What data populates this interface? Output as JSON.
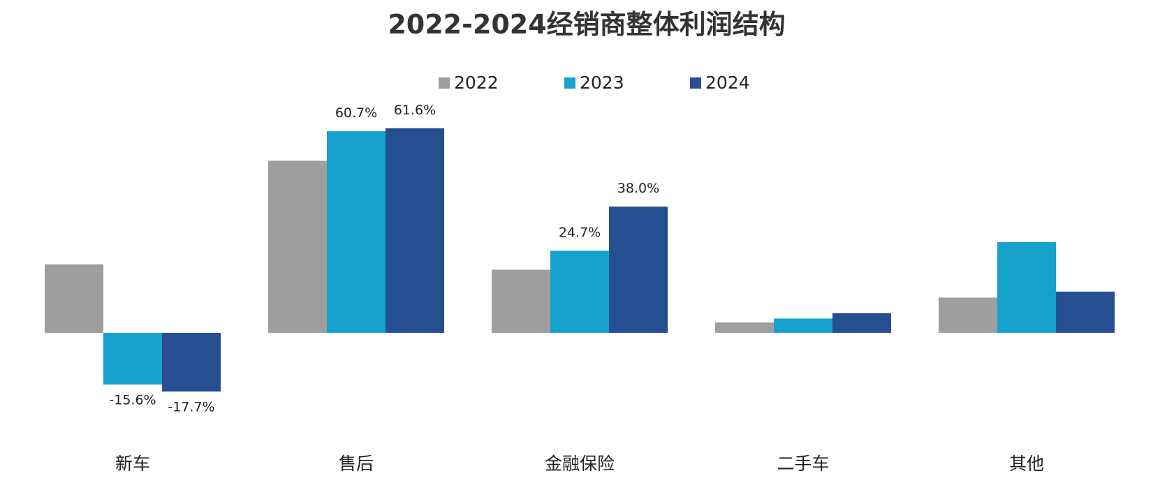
{
  "chart_data": {
    "type": "bar",
    "title": "2022-2024经销商整体利润结构",
    "categories": [
      "新车",
      "售后",
      "金融保险",
      "二手车",
      "其他"
    ],
    "series": [
      {
        "name": "2022",
        "color": "#9e9e9e",
        "values": [
          20.6,
          51.8,
          19.0,
          3.1,
          10.6
        ]
      },
      {
        "name": "2023",
        "color": "#17a2cb",
        "values": [
          -15.6,
          60.7,
          24.7,
          4.3,
          27.3
        ]
      },
      {
        "name": "2024",
        "color": "#264f91",
        "values": [
          -17.7,
          61.6,
          38.0,
          5.9,
          12.4
        ]
      }
    ],
    "data_labels": [
      {
        "category": 0,
        "series": 1,
        "text": "-15.6%"
      },
      {
        "category": 0,
        "series": 2,
        "text": "-17.7%"
      },
      {
        "category": 1,
        "series": 1,
        "text": "60.7%"
      },
      {
        "category": 1,
        "series": 2,
        "text": "61.6%"
      },
      {
        "category": 2,
        "series": 1,
        "text": "24.7%"
      },
      {
        "category": 2,
        "series": 2,
        "text": "38.0%"
      }
    ],
    "ylim": [
      -23,
      68
    ],
    "xlabel": "",
    "ylabel": "",
    "grid": false,
    "legend": "top-center"
  }
}
